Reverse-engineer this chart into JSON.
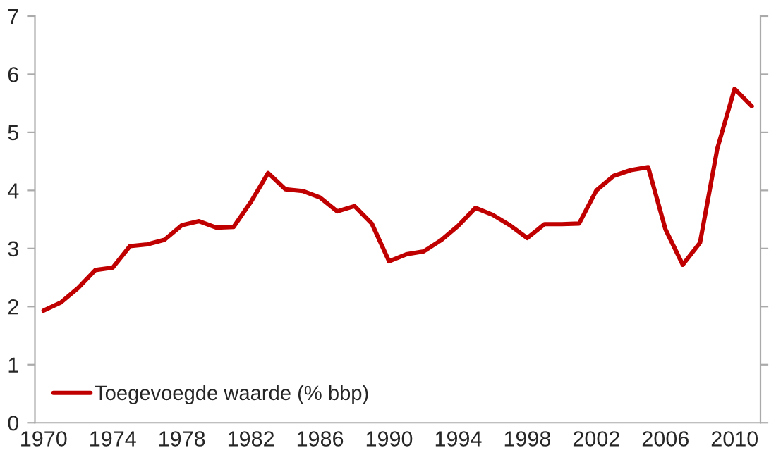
{
  "chart_data": {
    "type": "line",
    "categories": [
      "1970",
      null,
      null,
      null,
      "1974",
      null,
      null,
      null,
      "1978",
      null,
      null,
      null,
      "1982",
      null,
      null,
      null,
      "1986",
      null,
      null,
      null,
      "1990",
      null,
      null,
      null,
      "1994",
      null,
      null,
      null,
      "1998",
      null,
      null,
      null,
      "2002",
      null,
      null,
      null,
      "2006",
      null,
      null,
      null,
      "2010",
      null
    ],
    "series": [
      {
        "name": "Toegevoegde waarde (% bbp)",
        "color": "#c00000",
        "values": [
          1.93,
          2.07,
          2.32,
          2.63,
          2.67,
          3.04,
          3.07,
          3.15,
          3.4,
          3.47,
          3.36,
          3.37,
          3.8,
          4.3,
          4.02,
          3.99,
          3.88,
          3.64,
          3.73,
          3.43,
          2.78,
          2.9,
          2.95,
          3.14,
          3.39,
          3.7,
          3.58,
          3.4,
          3.18,
          3.42,
          3.42,
          3.43,
          4.0,
          4.25,
          4.35,
          4.4,
          3.33,
          2.72,
          3.1,
          4.72,
          5.75,
          5.45
        ]
      }
    ],
    "ylim": [
      0,
      7
    ],
    "yticks": [
      0,
      1,
      2,
      3,
      4,
      5,
      6,
      7
    ],
    "grid": false,
    "legend": "bottom left",
    "line_style": "solid",
    "marker": "none"
  }
}
